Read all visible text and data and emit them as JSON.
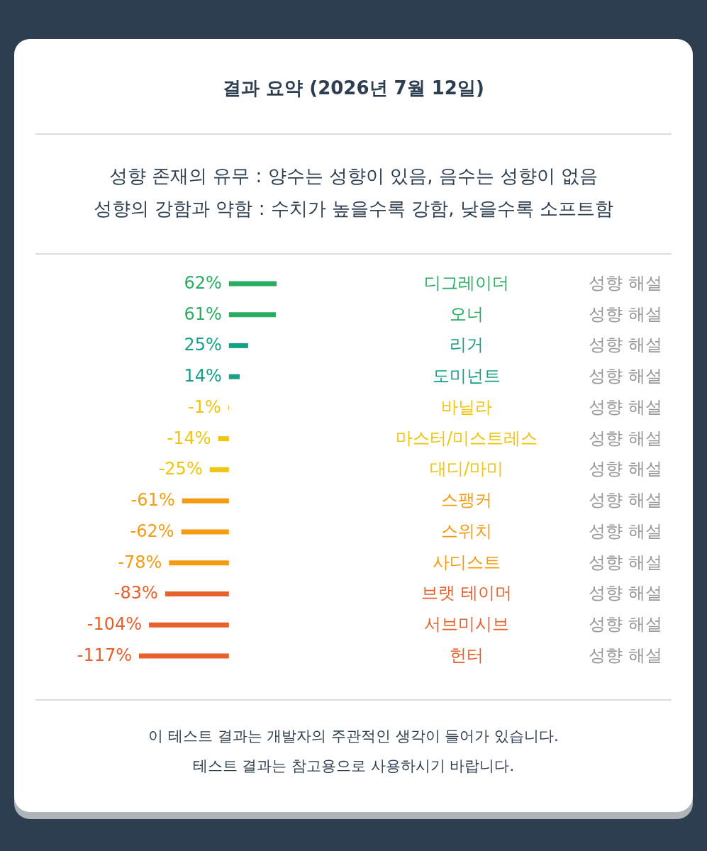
{
  "chart_data": {
    "type": "bar",
    "orientation": "horizontal",
    "title": "결과 요약 (2026년 7월 12일)",
    "subtitle": "성향 존재의 유무 : 양수는 성향이 있음, 음수는 성향이 없음\n성향의 강함과 약함 : 수치가 높을수록 강함, 낮을수록 소프트함",
    "categories": [
      "디그레이더",
      "오너",
      "리거",
      "도미넌트",
      "바닐라",
      "마스터/미스트레스",
      "대디/마미",
      "스팽커",
      "스위치",
      "사디스트",
      "브랫 테이머",
      "서브미시브",
      "헌터"
    ],
    "values": [
      62,
      61,
      25,
      14,
      -1,
      -14,
      -25,
      -61,
      -62,
      -78,
      -83,
      -104,
      -117
    ],
    "value_labels": [
      "62%",
      "61%",
      "25%",
      "14%",
      "-1%",
      "-14%",
      "-25%",
      "-61%",
      "-62%",
      "-78%",
      "-83%",
      "-104%",
      "-117%"
    ],
    "colors": [
      "#27ae60",
      "#27ae60",
      "#16a085",
      "#16a085",
      "#f1c40f",
      "#f1c40f",
      "#f1c40f",
      "#f39c12",
      "#f39c12",
      "#f39c12",
      "#e8602c",
      "#e8602c",
      "#e8602c"
    ],
    "annotations": [
      "성향 해설",
      "성향 해설",
      "성향 해설",
      "성향 해설",
      "성향 해설",
      "성향 해설",
      "성향 해설",
      "성향 해설",
      "성향 해설",
      "성향 해설",
      "성향 해설",
      "성향 해설",
      "성향 해설",
      "이 테스트 결과는 개발자의 주관적인 생각이 들어가 있습니다.",
      "테스트 결과는 참고용으로 사용하시기 바랍니다."
    ]
  }
}
